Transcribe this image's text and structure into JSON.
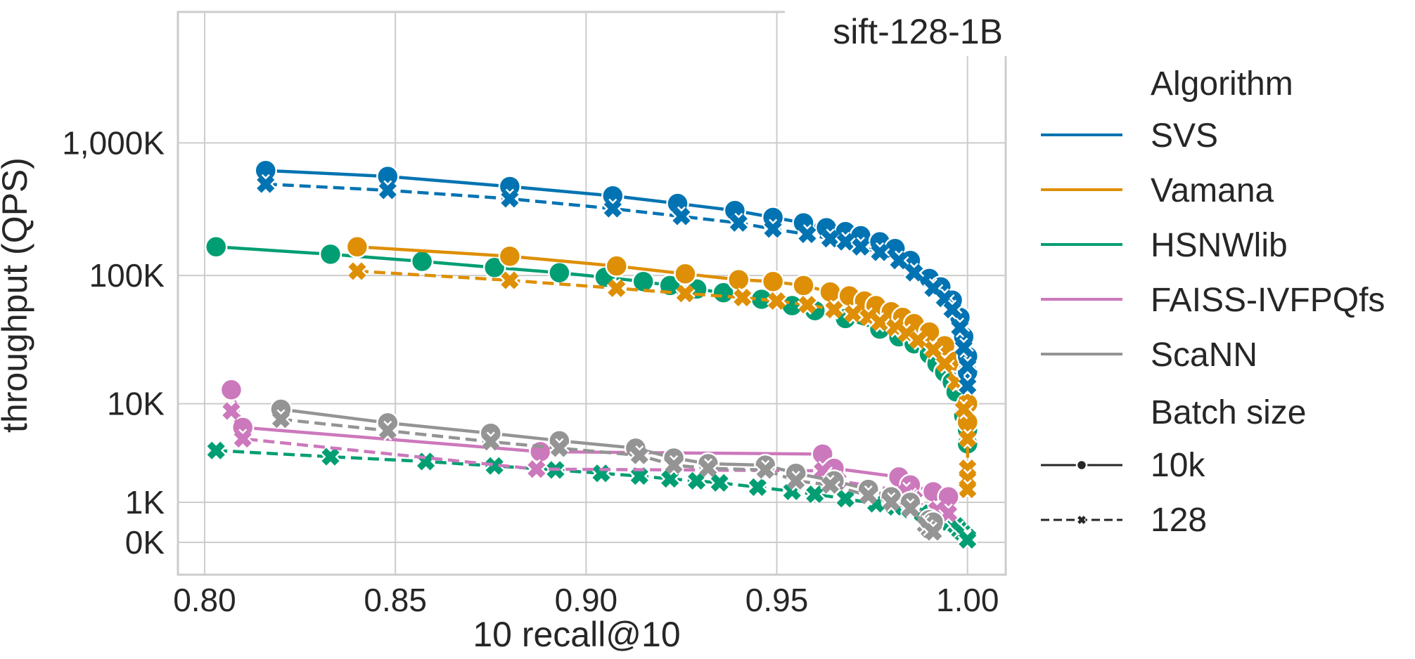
{
  "chart_data": {
    "type": "line",
    "title": "sift-128-1B",
    "xlabel": "10 recall@10",
    "ylabel": "throughput (QPS)",
    "xlim": [
      0.793,
      1.01
    ],
    "x_ticks": [
      0.8,
      0.85,
      0.9,
      0.95,
      1.0
    ],
    "x_tick_labels": [
      "0.80",
      "0.85",
      "0.90",
      "0.95",
      "1.00"
    ],
    "y_scale": "symlog",
    "y_ticks": [
      0,
      1000,
      10000,
      100000,
      1000000
    ],
    "y_tick_labels": [
      "0K",
      "1K",
      "10K",
      "100K",
      "1,000K"
    ],
    "grid": true,
    "legend_position": "right, outside plot",
    "legend": {
      "hue_title": "Algorithm",
      "style_title": "Batch size",
      "algorithms": [
        {
          "name": "SVS",
          "color": "#0173b2"
        },
        {
          "name": "Vamana",
          "color": "#de8f05"
        },
        {
          "name": "HSNWlib",
          "color": "#029e73"
        },
        {
          "name": "FAISS-IVFPQfs",
          "color": "#cc78bc"
        },
        {
          "name": "ScaNN",
          "color": "#949494"
        }
      ],
      "batch_sizes": [
        {
          "name": "10k",
          "marker": "circle",
          "dash": "solid"
        },
        {
          "name": "128",
          "marker": "x",
          "dash": "dashed"
        }
      ]
    },
    "series": [
      {
        "algorithm": "SVS",
        "batch": "10k",
        "x": [
          0.816,
          0.848,
          0.88,
          0.907,
          0.924,
          0.939,
          0.949,
          0.957,
          0.963,
          0.968,
          0.972,
          0.977,
          0.981,
          0.985,
          0.99,
          0.993,
          0.996,
          0.998,
          0.999,
          1.0,
          1.0
        ],
        "y": [
          620000,
          560000,
          470000,
          400000,
          350000,
          310000,
          275000,
          250000,
          230000,
          215000,
          200000,
          180000,
          160000,
          130000,
          95000,
          82000,
          65000,
          48000,
          34000,
          24000,
          18000
        ]
      },
      {
        "algorithm": "SVS",
        "batch": "128",
        "x": [
          0.816,
          0.848,
          0.88,
          0.907,
          0.925,
          0.94,
          0.949,
          0.958,
          0.964,
          0.968,
          0.972,
          0.977,
          0.982,
          0.986,
          0.991,
          0.994,
          0.996,
          0.998,
          0.999,
          1.0,
          1.0
        ],
        "y": [
          490000,
          440000,
          380000,
          320000,
          280000,
          250000,
          225000,
          205000,
          190000,
          180000,
          165000,
          150000,
          130000,
          105000,
          80000,
          67000,
          55000,
          40000,
          28000,
          20000,
          14000
        ]
      },
      {
        "algorithm": "Vamana",
        "batch": "10k",
        "x": [
          0.84,
          0.88,
          0.908,
          0.926,
          0.94,
          0.949,
          0.957,
          0.964,
          0.969,
          0.973,
          0.976,
          0.98,
          0.983,
          0.986,
          0.99,
          0.994,
          0.997,
          0.999,
          1.0,
          1.0
        ],
        "y": [
          165000,
          140000,
          118000,
          103000,
          93000,
          90000,
          84000,
          75000,
          70000,
          64000,
          59000,
          53000,
          48000,
          43000,
          37000,
          29000,
          22000,
          15000,
          10000,
          7000
        ]
      },
      {
        "algorithm": "Vamana",
        "batch": "128",
        "x": [
          0.84,
          0.88,
          0.908,
          0.926,
          0.941,
          0.95,
          0.958,
          0.965,
          0.97,
          0.974,
          0.977,
          0.981,
          0.984,
          0.987,
          0.991,
          0.994,
          0.997,
          0.999,
          1.0,
          1.0,
          1.0,
          1.0
        ],
        "y": [
          108000,
          92000,
          80000,
          73000,
          68000,
          64000,
          60000,
          55000,
          51000,
          48000,
          44000,
          40000,
          36000,
          32000,
          27000,
          21000,
          15000,
          9000,
          5000,
          2600,
          2000,
          1500
        ]
      },
      {
        "algorithm": "HSNWlib",
        "batch": "10k",
        "x": [
          0.803,
          0.833,
          0.857,
          0.876,
          0.893,
          0.905,
          0.915,
          0.922,
          0.929,
          0.936,
          0.946,
          0.954,
          0.96,
          0.968,
          0.977,
          0.982,
          0.986,
          0.99,
          0.992,
          0.994,
          0.996,
          0.997,
          0.999,
          1.0,
          1.0
        ],
        "y": [
          165000,
          145000,
          128000,
          115000,
          105000,
          97000,
          90000,
          84000,
          79000,
          74000,
          66000,
          59000,
          54000,
          47000,
          39000,
          34000,
          30000,
          25000,
          21000,
          18000,
          15000,
          12500,
          8000,
          6000,
          4500
        ]
      },
      {
        "algorithm": "HSNWlib",
        "batch": "128",
        "x": [
          0.803,
          0.833,
          0.858,
          0.876,
          0.892,
          0.904,
          0.914,
          0.922,
          0.929,
          0.935,
          0.945,
          0.954,
          0.96,
          0.968,
          0.976,
          0.981,
          0.985,
          0.988,
          0.992,
          0.995,
          0.997,
          0.998,
          0.999,
          1.0,
          1.0
        ],
        "y": [
          3900,
          3400,
          3050,
          2750,
          2500,
          2300,
          2150,
          2000,
          1900,
          1800,
          1600,
          1420,
          1300,
          1130,
          950,
          850,
          760,
          660,
          540,
          420,
          330,
          230,
          160,
          90,
          45
        ]
      },
      {
        "algorithm": "FAISS-IVFPQfs",
        "batch": "10k",
        "x": [
          0.807,
          0.81,
          0.888,
          0.962,
          0.965,
          0.982,
          0.985,
          0.991,
          0.995
        ],
        "y": [
          13000,
          6300,
          3800,
          3600,
          2600,
          2100,
          1700,
          1400,
          1200
        ]
      },
      {
        "algorithm": "FAISS-IVFPQfs",
        "batch": "128",
        "x": [
          0.807,
          0.81,
          0.887,
          0.962,
          0.966,
          0.984,
          0.986,
          0.992,
          0.995
        ],
        "y": [
          8700,
          5000,
          2550,
          2450,
          1900,
          1400,
          1100,
          750,
          650
        ]
      },
      {
        "algorithm": "ScaNN",
        "batch": "10k",
        "x": [
          0.82,
          0.848,
          0.875,
          0.893,
          0.913,
          0.923,
          0.932,
          0.947,
          0.955,
          0.965,
          0.974,
          0.98,
          0.985,
          0.99,
          0.991
        ],
        "y": [
          9000,
          6900,
          5600,
          4800,
          4100,
          3300,
          2900,
          2800,
          2300,
          1900,
          1500,
          1200,
          1000,
          480,
          420
        ]
      },
      {
        "algorithm": "ScaNN",
        "batch": "128",
        "x": [
          0.82,
          0.848,
          0.875,
          0.893,
          0.914,
          0.923,
          0.932,
          0.947,
          0.955,
          0.964,
          0.974,
          0.98,
          0.985,
          0.989,
          0.99,
          0.991
        ],
        "y": [
          7400,
          5900,
          4700,
          4100,
          3500,
          2800,
          2600,
          2500,
          1900,
          1700,
          1250,
          1000,
          800,
          350,
          250,
          200
        ]
      }
    ]
  }
}
